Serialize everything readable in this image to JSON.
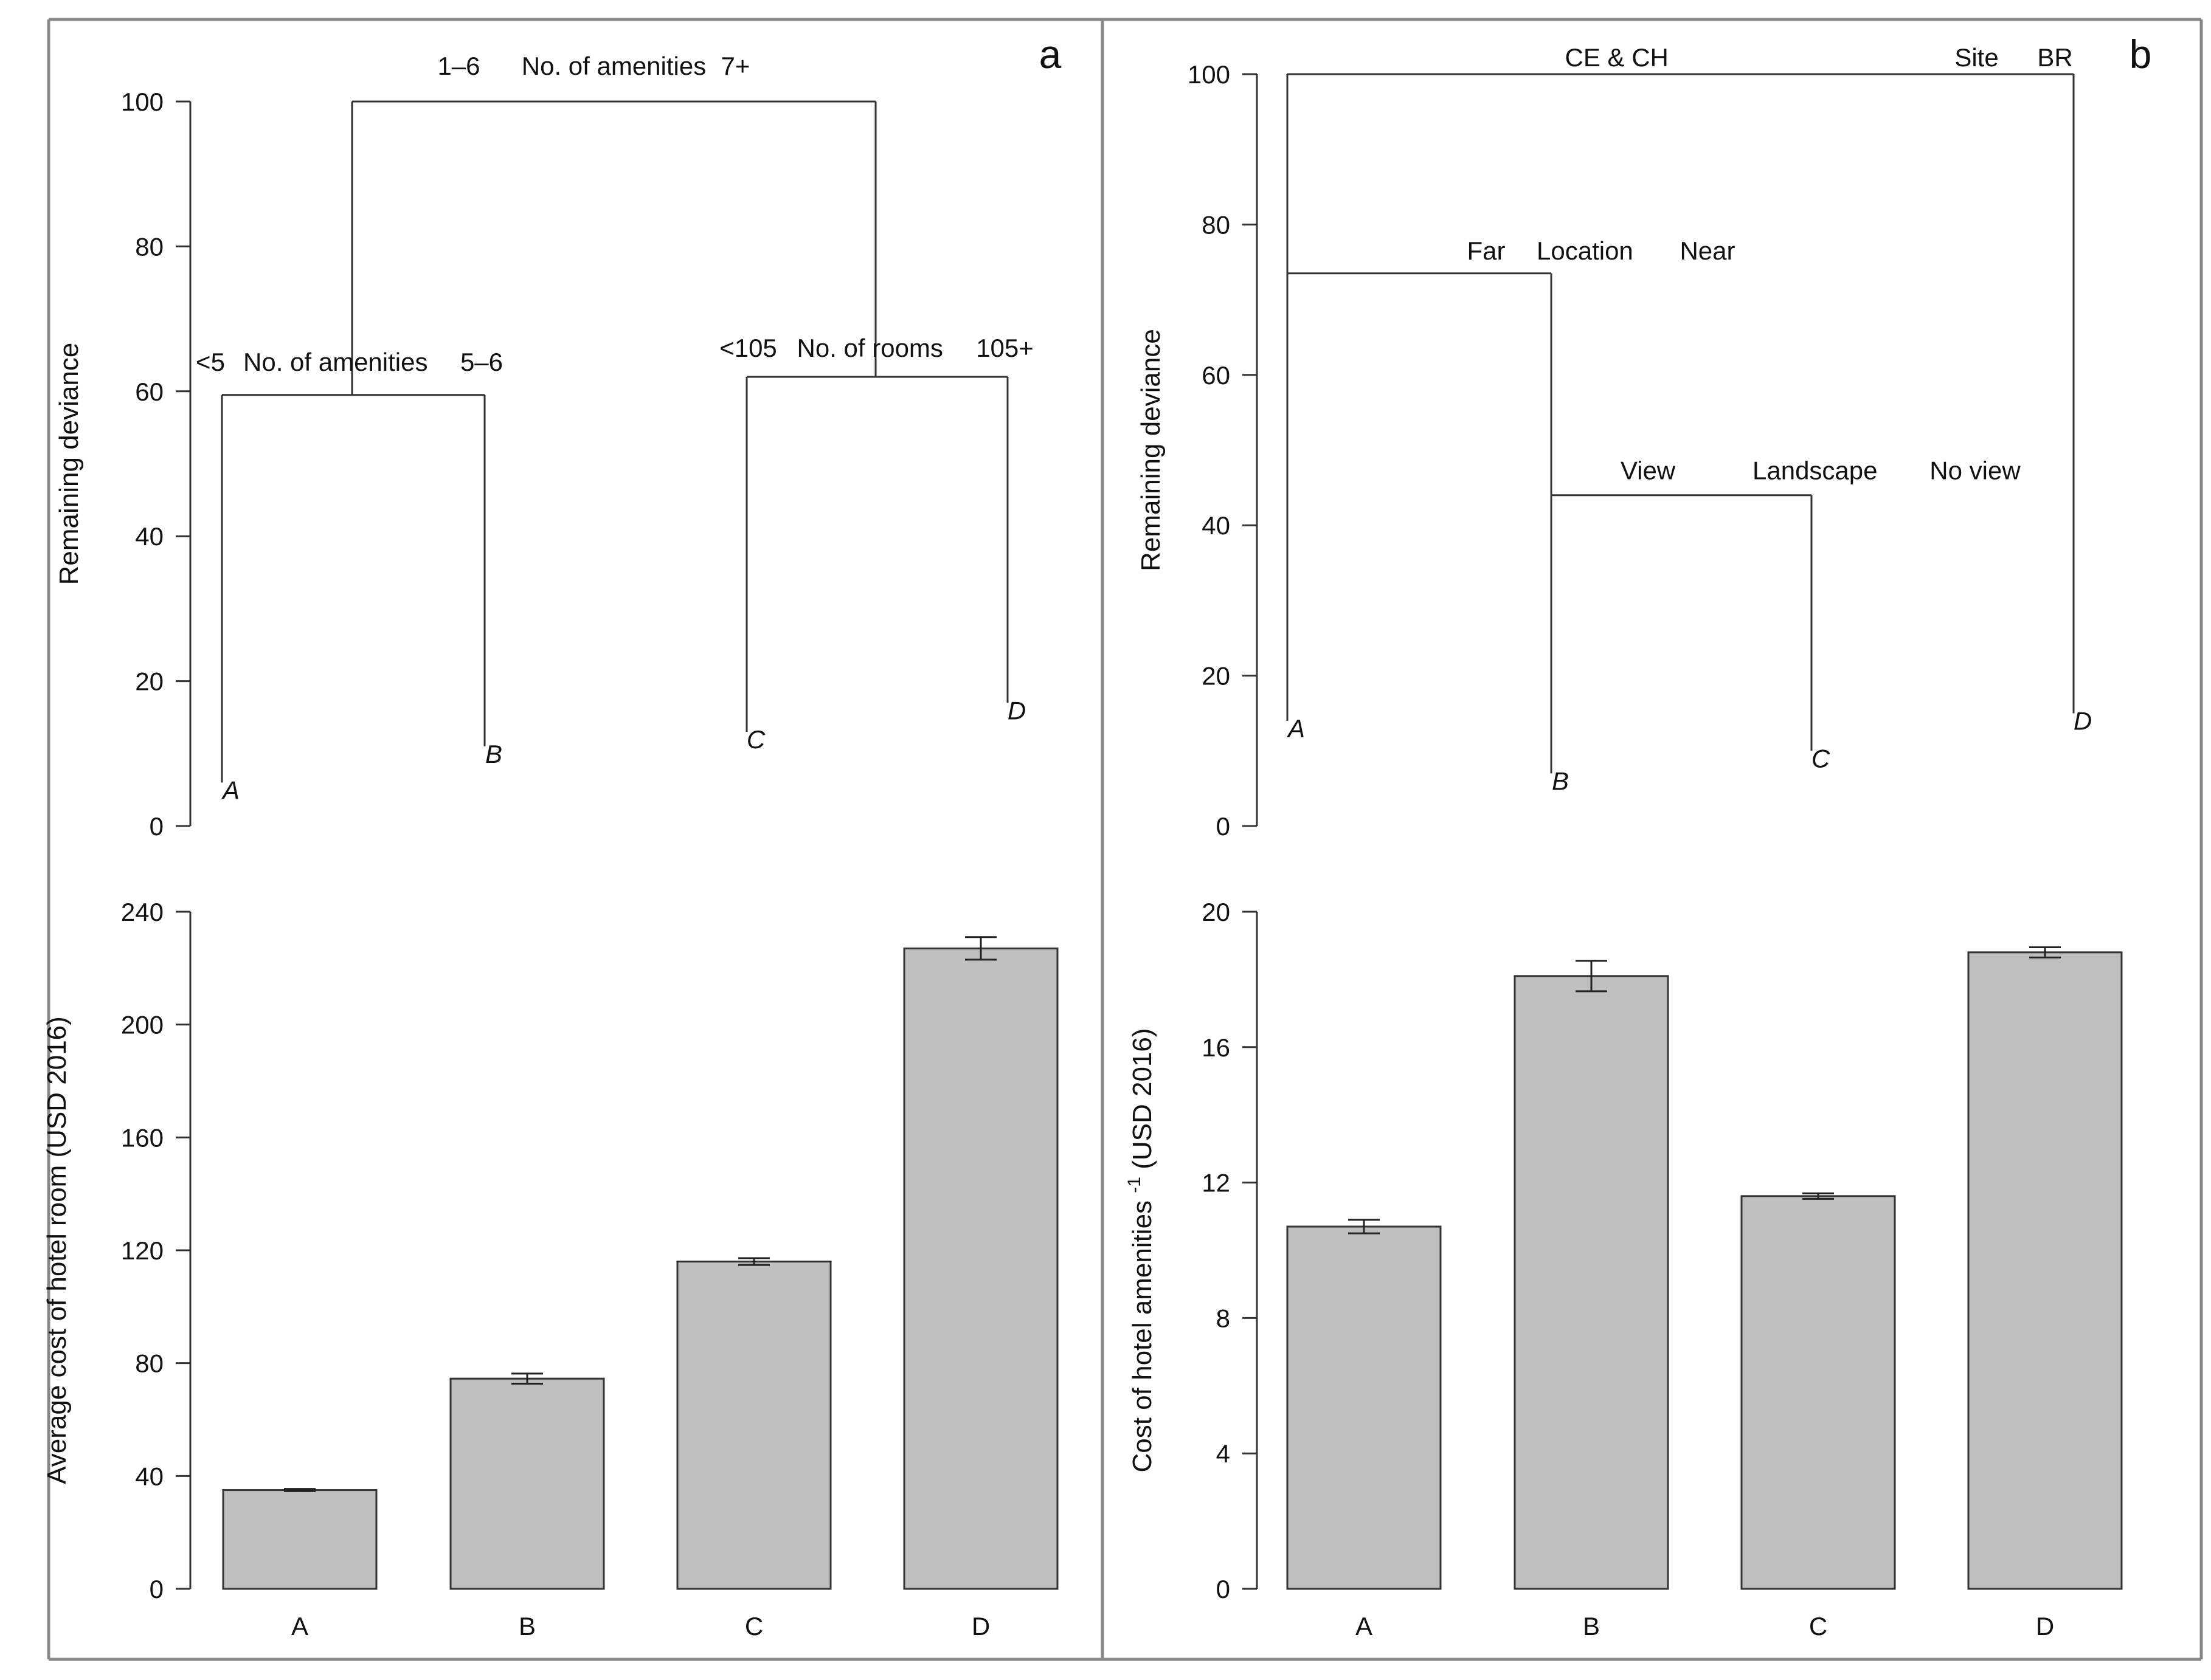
{
  "chart_data": [
    {
      "id": "tree-a",
      "panel_label": "a",
      "type": "tree",
      "ylabel": "Remaining deviance",
      "yticks": [
        0,
        20,
        40,
        60,
        80,
        100
      ],
      "ylim": [
        0,
        100
      ],
      "nodes": [
        {
          "id": "root",
          "split": [
            "1–6",
            "No. of amenities",
            "7+"
          ],
          "deviance": 100,
          "children": [
            "n1",
            "n2"
          ]
        },
        {
          "id": "n1",
          "split": [
            "<5",
            "No. of amenities",
            "5–6"
          ],
          "deviance": 59.5,
          "children": [
            "A",
            "B"
          ]
        },
        {
          "id": "n2",
          "split": [
            "<105",
            "No. of rooms",
            "105+"
          ],
          "deviance": 62,
          "children": [
            "C",
            "D"
          ]
        },
        {
          "id": "A",
          "label": "A",
          "deviance": 6
        },
        {
          "id": "B",
          "label": "B",
          "deviance": 11
        },
        {
          "id": "C",
          "label": "C",
          "deviance": 13
        },
        {
          "id": "D",
          "label": "D",
          "deviance": 17
        }
      ]
    },
    {
      "id": "tree-b",
      "panel_label": "b",
      "type": "tree",
      "ylabel": "Remaining deviance",
      "yticks": [
        0,
        20,
        40,
        60,
        80,
        100
      ],
      "ylim": [
        0,
        100
      ],
      "nodes": [
        {
          "id": "root",
          "split": [
            "CE & CH",
            "Site",
            "BR"
          ],
          "deviance": 100,
          "children": [
            "n1",
            "D"
          ]
        },
        {
          "id": "n1",
          "split": [
            "Far",
            "Location",
            "Near"
          ],
          "deviance": 73.5,
          "children": [
            "A",
            "n2"
          ]
        },
        {
          "id": "n2",
          "split": [
            "View",
            "Landscape",
            "No view"
          ],
          "deviance": 44,
          "children": [
            "B",
            "C"
          ]
        },
        {
          "id": "A",
          "label": "A",
          "deviance": 14
        },
        {
          "id": "B",
          "label": "B",
          "deviance": 7
        },
        {
          "id": "C",
          "label": "C",
          "deviance": 10
        },
        {
          "id": "D",
          "label": "D",
          "deviance": 15
        }
      ]
    },
    {
      "id": "bars-a",
      "type": "bar",
      "ylabel": "Average cost of hotel room (USD 2016)",
      "categories": [
        "A",
        "B",
        "C",
        "D"
      ],
      "values": [
        35,
        74.5,
        116,
        227
      ],
      "errors": [
        0.4,
        1.8,
        1.2,
        4
      ],
      "yticks": [
        0,
        40,
        80,
        120,
        160,
        200,
        240
      ],
      "ylim": [
        0,
        240
      ]
    },
    {
      "id": "bars-b",
      "type": "bar",
      "ylabel_main": "Cost of hotel amenities",
      "ylabel_sup": "-1",
      "ylabel_tail": "(USD 2016)",
      "categories": [
        "A",
        "B",
        "C",
        "D"
      ],
      "values": [
        10.7,
        18.1,
        11.6,
        18.8
      ],
      "errors": [
        0.2,
        0.45,
        0.08,
        0.15
      ],
      "yticks": [
        0,
        4,
        8,
        12,
        16,
        20
      ],
      "ylim": [
        0,
        20
      ]
    }
  ]
}
